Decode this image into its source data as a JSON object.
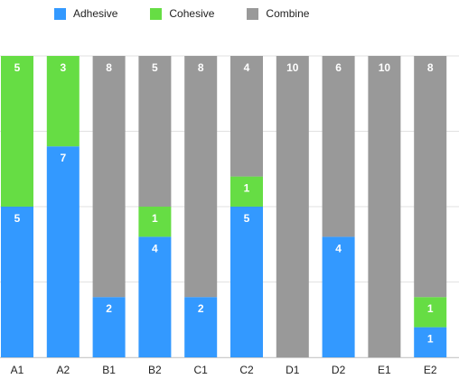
{
  "chart_data": {
    "type": "bar",
    "stacked": true,
    "categories": [
      "A1",
      "A2",
      "B1",
      "B2",
      "C1",
      "C2",
      "D1",
      "D2",
      "E1",
      "E2"
    ],
    "series": [
      {
        "name": "Adhesive",
        "color": "#3399ff",
        "values": [
          5,
          7,
          2,
          4,
          2,
          5,
          0,
          4,
          0,
          1
        ]
      },
      {
        "name": "Cohesive",
        "color": "#66dd44",
        "values": [
          5,
          3,
          0,
          1,
          0,
          1,
          0,
          0,
          0,
          1
        ]
      },
      {
        "name": "Combine",
        "color": "#999999",
        "values": [
          0,
          0,
          8,
          5,
          8,
          4,
          10,
          6,
          10,
          8
        ]
      }
    ],
    "ylim": [
      0,
      10
    ],
    "grid": true,
    "legend": "top"
  }
}
